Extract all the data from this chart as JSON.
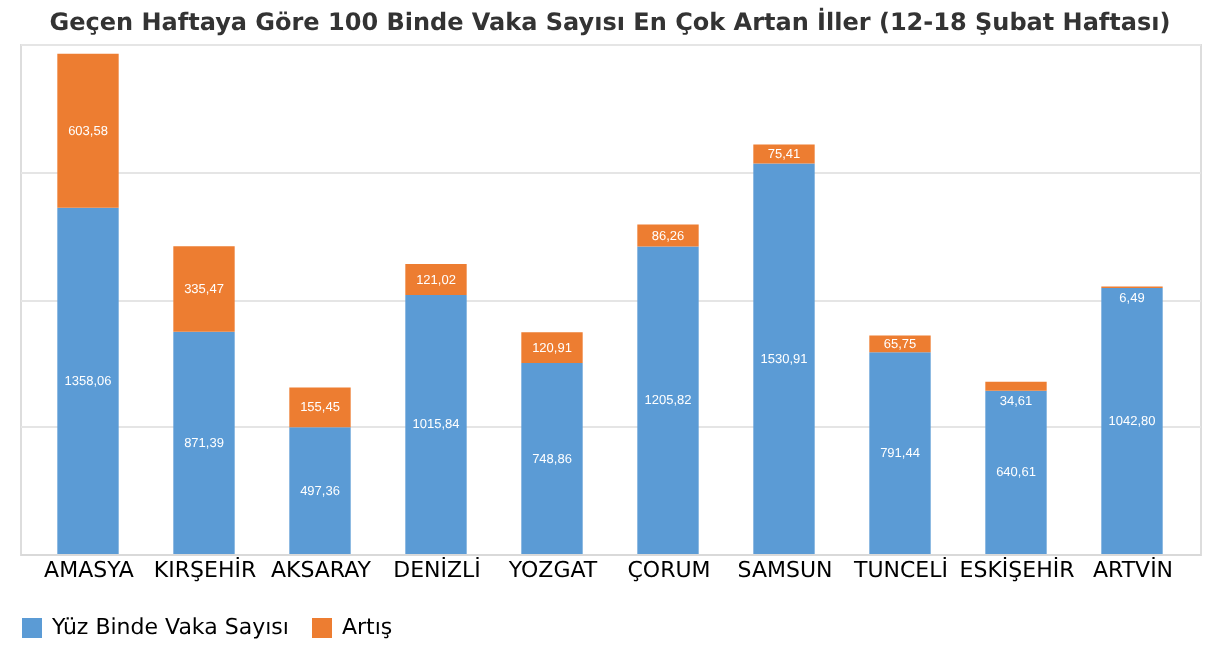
{
  "chart_data": {
    "type": "bar",
    "title": "Geçen Haftaya Göre 100 Binde Vaka Sayısı En Çok Artan İller (12-18 Şubat Haftası)",
    "categories": [
      "AMASYA",
      "KIRŞEHİR",
      "AKSARAY",
      "DENİZLİ",
      "YOZGAT",
      "ÇORUM",
      "SAMSUN",
      "TUNCELİ",
      "ESKİŞEHİR",
      "ARTVİN"
    ],
    "stacked": true,
    "series": [
      {
        "name": "Yüz Binde Vaka Sayısı",
        "color": "#5b9bd5",
        "values": [
          1358.06,
          871.39,
          497.36,
          1015.84,
          748.86,
          1205.82,
          1530.91,
          791.44,
          640.61,
          1042.8
        ],
        "value_labels": [
          "1358,06",
          "871,39",
          "497,36",
          "1015,84",
          "748,86",
          "1205,82",
          "1530,91",
          "791,44",
          "640,61",
          "1042,80"
        ]
      },
      {
        "name": "Artış",
        "color": "#ed7d31",
        "values": [
          603.58,
          335.47,
          155.45,
          121.02,
          120.91,
          86.26,
          75.41,
          65.75,
          34.61,
          6.49
        ],
        "value_labels": [
          "603,58",
          "335,47",
          "155,45",
          "121,02",
          "120,91",
          "86,26",
          "75,41",
          "65,75",
          "34,61",
          "6,49"
        ]
      }
    ],
    "ylim": [
      0,
      2000
    ],
    "yticks": [
      {
        "value": 0,
        "label": null
      },
      {
        "value": 500,
        "label": null
      },
      {
        "value": 1000,
        "label": null
      },
      {
        "value": 1500,
        "label": null
      },
      {
        "value": 2000,
        "label": null
      }
    ],
    "tick_labels": "x",
    "grid": "y",
    "legend": "bottom"
  }
}
